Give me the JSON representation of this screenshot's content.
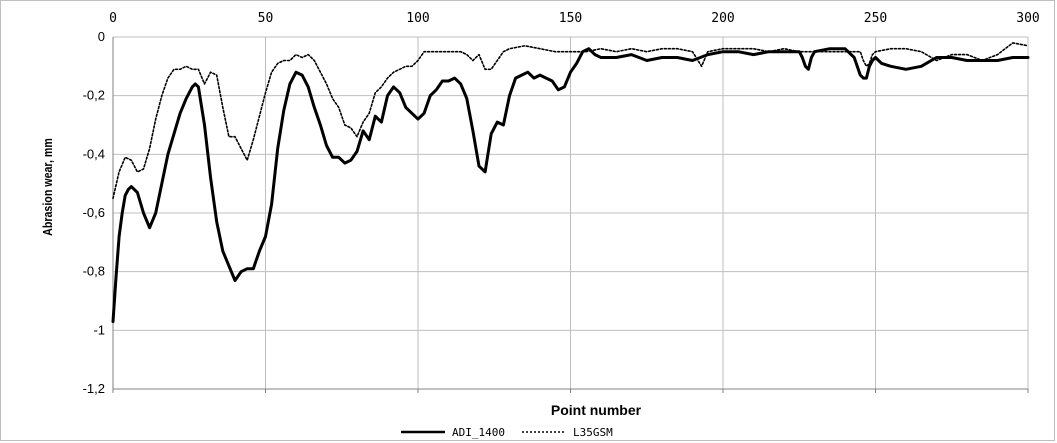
{
  "chart_data": {
    "type": "line",
    "title": "",
    "xlabel": "Point number",
    "ylabel": "Abrasion wear, mm",
    "xlim": [
      0,
      300
    ],
    "ylim": [
      -1.2,
      0
    ],
    "x_ticks": [
      "0",
      "50",
      "100",
      "150",
      "200",
      "250",
      "300"
    ],
    "y_ticks": [
      "0",
      "-0,2",
      "-0,4",
      "-0,6",
      "-0,8",
      "-1",
      "-1,2"
    ],
    "grid": true,
    "legend_position": "bottom",
    "series": [
      {
        "name": "ADI_1400",
        "style": "solid",
        "color": "#000000",
        "x": [
          0,
          1,
          2,
          3,
          4,
          5,
          6,
          8,
          10,
          12,
          14,
          16,
          18,
          20,
          22,
          24,
          26,
          27,
          28,
          30,
          32,
          34,
          36,
          38,
          40,
          42,
          44,
          46,
          48,
          50,
          52,
          54,
          56,
          58,
          60,
          62,
          64,
          66,
          68,
          70,
          72,
          74,
          76,
          78,
          80,
          82,
          84,
          86,
          88,
          90,
          92,
          94,
          96,
          98,
          100,
          102,
          104,
          106,
          108,
          110,
          112,
          114,
          116,
          118,
          120,
          122,
          124,
          126,
          128,
          130,
          132,
          134,
          136,
          138,
          140,
          142,
          144,
          146,
          148,
          150,
          152,
          154,
          156,
          158,
          160,
          165,
          170,
          175,
          180,
          185,
          190,
          195,
          200,
          205,
          210,
          215,
          220,
          225,
          226,
          227,
          228,
          229,
          230,
          235,
          240,
          243,
          245,
          246,
          247,
          248,
          249,
          250,
          252,
          255,
          260,
          265,
          270,
          275,
          280,
          285,
          290,
          295,
          300
        ],
        "y": [
          -0.97,
          -0.82,
          -0.68,
          -0.6,
          -0.54,
          -0.52,
          -0.51,
          -0.53,
          -0.6,
          -0.65,
          -0.6,
          -0.5,
          -0.4,
          -0.33,
          -0.26,
          -0.21,
          -0.17,
          -0.16,
          -0.17,
          -0.3,
          -0.48,
          -0.63,
          -0.73,
          -0.78,
          -0.83,
          -0.8,
          -0.79,
          -0.79,
          -0.73,
          -0.68,
          -0.57,
          -0.38,
          -0.25,
          -0.16,
          -0.12,
          -0.13,
          -0.17,
          -0.24,
          -0.3,
          -0.37,
          -0.41,
          -0.41,
          -0.43,
          -0.42,
          -0.39,
          -0.32,
          -0.35,
          -0.27,
          -0.29,
          -0.2,
          -0.17,
          -0.19,
          -0.24,
          -0.26,
          -0.28,
          -0.26,
          -0.2,
          -0.18,
          -0.15,
          -0.15,
          -0.14,
          -0.16,
          -0.21,
          -0.32,
          -0.44,
          -0.46,
          -0.33,
          -0.29,
          -0.3,
          -0.2,
          -0.14,
          -0.13,
          -0.12,
          -0.14,
          -0.13,
          -0.14,
          -0.15,
          -0.18,
          -0.17,
          -0.12,
          -0.09,
          -0.05,
          -0.04,
          -0.06,
          -0.07,
          -0.07,
          -0.06,
          -0.08,
          -0.07,
          -0.07,
          -0.08,
          -0.06,
          -0.05,
          -0.05,
          -0.06,
          -0.05,
          -0.05,
          -0.05,
          -0.07,
          -0.1,
          -0.11,
          -0.07,
          -0.05,
          -0.04,
          -0.04,
          -0.07,
          -0.13,
          -0.14,
          -0.14,
          -0.1,
          -0.08,
          -0.07,
          -0.09,
          -0.1,
          -0.11,
          -0.1,
          -0.07,
          -0.07,
          -0.08,
          -0.08,
          -0.08,
          -0.07,
          -0.07
        ]
      },
      {
        "name": "L35GSM",
        "style": "dotted",
        "color": "#000000",
        "x": [
          0,
          2,
          4,
          6,
          8,
          10,
          12,
          14,
          16,
          18,
          20,
          22,
          24,
          26,
          28,
          30,
          32,
          34,
          36,
          38,
          40,
          42,
          44,
          46,
          48,
          50,
          52,
          54,
          56,
          58,
          60,
          62,
          64,
          66,
          68,
          70,
          72,
          74,
          76,
          78,
          80,
          82,
          84,
          86,
          88,
          90,
          92,
          94,
          96,
          98,
          100,
          102,
          104,
          106,
          108,
          110,
          112,
          114,
          116,
          118,
          120,
          122,
          124,
          126,
          128,
          130,
          135,
          140,
          145,
          150,
          155,
          160,
          165,
          170,
          175,
          180,
          185,
          190,
          193,
          195,
          200,
          205,
          210,
          215,
          220,
          225,
          230,
          235,
          240,
          245,
          246,
          247,
          248,
          249,
          250,
          255,
          260,
          265,
          270,
          275,
          280,
          285,
          290,
          295,
          300
        ],
        "y": [
          -0.55,
          -0.46,
          -0.41,
          -0.42,
          -0.46,
          -0.45,
          -0.38,
          -0.28,
          -0.2,
          -0.14,
          -0.11,
          -0.11,
          -0.1,
          -0.11,
          -0.11,
          -0.16,
          -0.12,
          -0.13,
          -0.24,
          -0.34,
          -0.34,
          -0.38,
          -0.42,
          -0.35,
          -0.27,
          -0.19,
          -0.12,
          -0.09,
          -0.08,
          -0.08,
          -0.06,
          -0.07,
          -0.06,
          -0.08,
          -0.12,
          -0.16,
          -0.21,
          -0.24,
          -0.3,
          -0.31,
          -0.34,
          -0.29,
          -0.26,
          -0.19,
          -0.17,
          -0.14,
          -0.12,
          -0.11,
          -0.1,
          -0.1,
          -0.08,
          -0.05,
          -0.05,
          -0.05,
          -0.05,
          -0.05,
          -0.05,
          -0.05,
          -0.06,
          -0.08,
          -0.06,
          -0.11,
          -0.11,
          -0.08,
          -0.05,
          -0.04,
          -0.03,
          -0.04,
          -0.05,
          -0.05,
          -0.05,
          -0.04,
          -0.05,
          -0.04,
          -0.05,
          -0.04,
          -0.04,
          -0.05,
          -0.1,
          -0.05,
          -0.04,
          -0.04,
          -0.04,
          -0.05,
          -0.04,
          -0.05,
          -0.05,
          -0.05,
          -0.05,
          -0.05,
          -0.08,
          -0.1,
          -0.09,
          -0.06,
          -0.05,
          -0.04,
          -0.04,
          -0.05,
          -0.08,
          -0.06,
          -0.06,
          -0.08,
          -0.06,
          -0.02,
          -0.03
        ]
      }
    ]
  }
}
